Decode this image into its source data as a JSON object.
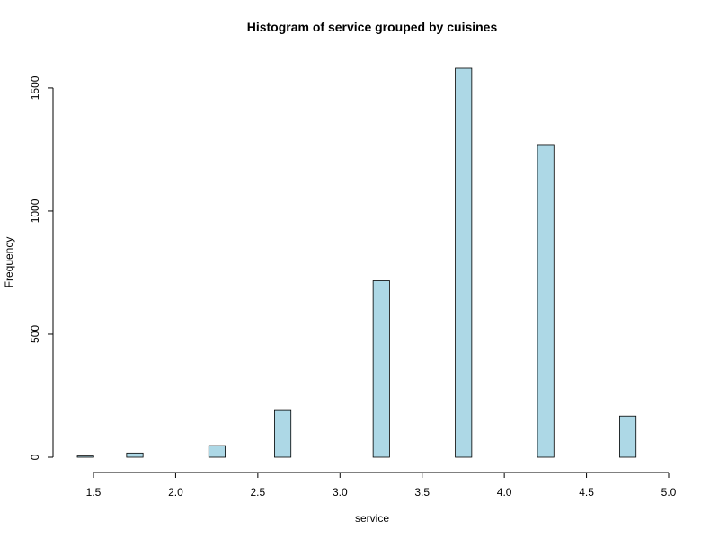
{
  "chart_data": {
    "type": "bar",
    "title": "Histogram of service grouped by cuisines",
    "xlabel": "service",
    "ylabel": "Frequency",
    "bar_color": "#add8e6",
    "bar_stroke": "#000000",
    "grid": false,
    "x_ticks": [
      "1.5",
      "2.0",
      "2.5",
      "3.0",
      "3.5",
      "4.0",
      "4.5",
      "5.0"
    ],
    "y_ticks": [
      "0",
      "500",
      "1000",
      "1500"
    ],
    "xlim": [
      1.5,
      5.0
    ],
    "ylim": [
      0,
      1580
    ],
    "bins": [
      {
        "x0": 1.5,
        "x1": 1.6,
        "value": 5
      },
      {
        "x0": 1.6,
        "x1": 1.7,
        "value": 0
      },
      {
        "x0": 1.7,
        "x1": 1.8,
        "value": 0
      },
      {
        "x0": 1.8,
        "x1": 1.9,
        "value": 17
      },
      {
        "x0": 1.9,
        "x1": 2.0,
        "value": 0
      },
      {
        "x0": 2.0,
        "x1": 2.1,
        "value": 0
      },
      {
        "x0": 2.1,
        "x1": 2.2,
        "value": 0
      },
      {
        "x0": 2.3,
        "x1": 2.4,
        "value": 47
      },
      {
        "x0": 2.4,
        "x1": 2.5,
        "value": 0
      },
      {
        "x0": 2.5,
        "x1": 2.6,
        "value": 0
      },
      {
        "x0": 2.6,
        "x1": 2.7,
        "value": 0
      },
      {
        "x0": 2.7,
        "x1": 2.8,
        "value": 193
      },
      {
        "x0": 2.8,
        "x1": 2.9,
        "value": 0
      },
      {
        "x0": 2.9,
        "x1": 3.0,
        "value": 0
      },
      {
        "x0": 3.0,
        "x1": 3.1,
        "value": 0
      },
      {
        "x0": 3.3,
        "x1": 3.4,
        "value": 717
      },
      {
        "x0": 3.4,
        "x1": 3.5,
        "value": 0
      },
      {
        "x0": 3.5,
        "x1": 3.6,
        "value": 0
      },
      {
        "x0": 3.6,
        "x1": 3.7,
        "value": 0
      },
      {
        "x0": 3.8,
        "x1": 3.9,
        "value": 1580
      },
      {
        "x0": 3.9,
        "x1": 4.0,
        "value": 0
      },
      {
        "x0": 4.0,
        "x1": 4.1,
        "value": 0
      },
      {
        "x0": 4.1,
        "x1": 4.2,
        "value": 0
      },
      {
        "x0": 4.3,
        "x1": 4.4,
        "value": 1270
      },
      {
        "x0": 4.4,
        "x1": 4.5,
        "value": 0
      },
      {
        "x0": 4.5,
        "x1": 4.6,
        "value": 0
      },
      {
        "x0": 4.6,
        "x1": 4.7,
        "value": 0
      },
      {
        "x0": 4.8,
        "x1": 4.9,
        "value": 167
      }
    ]
  }
}
